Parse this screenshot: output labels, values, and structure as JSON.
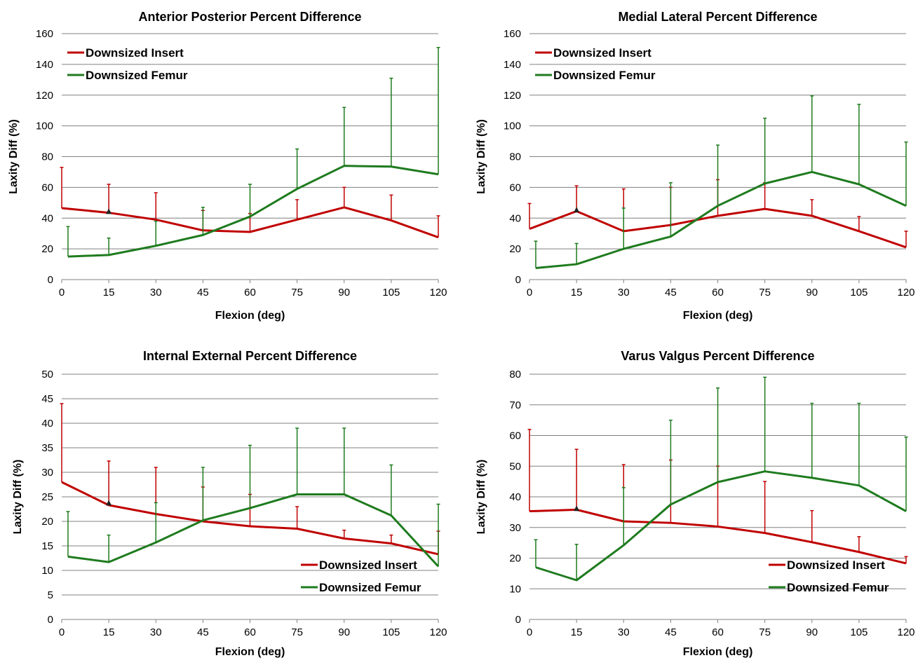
{
  "colors": {
    "insert": "#C00000",
    "femur": "#1E7B1E",
    "grid": "#808080",
    "marker": "#222222"
  },
  "chart_data": [
    {
      "type": "line",
      "title": "Anterior Posterior Percent Difference",
      "xlabel": "Flexion (deg)",
      "ylabel": "Laxity Diff (%)",
      "xlim": [
        0,
        120
      ],
      "ylim": [
        0,
        160
      ],
      "ystep": 20,
      "x_ticks": [
        "0",
        "15",
        "30",
        "45",
        "60",
        "75",
        "90",
        "105",
        "120"
      ],
      "y_ticks": [
        "0",
        "20",
        "40",
        "60",
        "80",
        "100",
        "120",
        "140",
        "160"
      ],
      "grid": true,
      "legend_position": "top-left",
      "series": [
        {
          "name": "Downsized Insert",
          "x": [
            0,
            15,
            30,
            45,
            60,
            75,
            90,
            105,
            120
          ],
          "values": [
            46.5,
            43.5,
            39,
            32,
            31,
            39,
            47,
            38.5,
            27.5
          ],
          "error_upper": [
            73,
            62,
            56.5,
            45,
            43,
            52,
            60,
            55,
            41.5
          ]
        },
        {
          "name": "Downsized Femur",
          "x": [
            2,
            15,
            30,
            45,
            60,
            75,
            90,
            105,
            120
          ],
          "values": [
            15,
            16,
            22,
            29,
            41,
            59,
            74,
            73.5,
            68.5
          ],
          "error_upper": [
            34.5,
            27,
            38,
            47,
            62,
            85,
            112,
            131,
            151
          ]
        }
      ],
      "markers": [
        {
          "x": 15,
          "y": 44.5,
          "symbol": "triangle"
        }
      ]
    },
    {
      "type": "line",
      "title": "Medial Lateral Percent Difference",
      "xlabel": "Flexion (deg)",
      "ylabel": "Laxity Diff (%)",
      "xlim": [
        0,
        120
      ],
      "ylim": [
        0,
        160
      ],
      "ystep": 20,
      "x_ticks": [
        "0",
        "15",
        "30",
        "45",
        "60",
        "75",
        "90",
        "105",
        "120"
      ],
      "y_ticks": [
        "0",
        "20",
        "40",
        "60",
        "80",
        "100",
        "120",
        "140",
        "160"
      ],
      "grid": true,
      "legend_position": "top-left",
      "series": [
        {
          "name": "Downsized Insert",
          "x": [
            0,
            15,
            30,
            45,
            60,
            75,
            90,
            105,
            120
          ],
          "values": [
            33,
            44.5,
            31.5,
            35.5,
            41.5,
            46,
            41.5,
            31.5,
            21
          ],
          "error_upper": [
            49.5,
            61,
            59,
            60,
            65,
            63,
            52,
            41,
            31.5
          ]
        },
        {
          "name": "Downsized Femur",
          "x": [
            2,
            15,
            30,
            45,
            60,
            75,
            90,
            105,
            120
          ],
          "values": [
            7.5,
            10,
            20,
            28,
            48,
            62.5,
            70,
            62,
            48
          ],
          "error_upper": [
            25,
            23.5,
            46.5,
            63,
            87.5,
            105,
            119.5,
            114,
            89.5
          ]
        }
      ],
      "markers": [
        {
          "x": 15,
          "y": 45.5,
          "symbol": "triangle"
        }
      ]
    },
    {
      "type": "line",
      "title": "Internal External Percent Difference",
      "xlabel": "Flexion (deg)",
      "ylabel": "Laxity Diff (%)",
      "xlim": [
        0,
        120
      ],
      "ylim": [
        0,
        50
      ],
      "ystep": 5,
      "x_ticks": [
        "0",
        "15",
        "30",
        "45",
        "60",
        "75",
        "90",
        "105",
        "120"
      ],
      "y_ticks": [
        "0",
        "5",
        "10",
        "15",
        "20",
        "25",
        "30",
        "35",
        "40",
        "45",
        "50"
      ],
      "grid": true,
      "legend_position": "bottom-right",
      "series": [
        {
          "name": "Downsized Insert",
          "x": [
            0,
            15,
            30,
            45,
            60,
            75,
            90,
            105,
            120
          ],
          "values": [
            28,
            23.3,
            21.5,
            20,
            19,
            18.5,
            16.5,
            15.5,
            13.3
          ],
          "error_upper": [
            44,
            32.3,
            31,
            27,
            25.5,
            23,
            18.2,
            17.2,
            18
          ]
        },
        {
          "name": "Downsized Femur",
          "x": [
            2,
            15,
            30,
            45,
            60,
            75,
            90,
            105,
            120
          ],
          "values": [
            12.8,
            11.7,
            15.7,
            20.2,
            22.7,
            25.5,
            25.5,
            21.2,
            10.8
          ],
          "error_upper": [
            22,
            17.2,
            23.8,
            31,
            35.5,
            39,
            39,
            31.5,
            23.5
          ]
        }
      ],
      "markers": [
        {
          "x": 15,
          "y": 23.8,
          "symbol": "triangle"
        }
      ]
    },
    {
      "type": "line",
      "title": "Varus Valgus Percent Difference",
      "xlabel": "Flexion (deg)",
      "ylabel": "Laxity Diff (%)",
      "xlim": [
        0,
        120
      ],
      "ylim": [
        0,
        80
      ],
      "ystep": 10,
      "x_ticks": [
        "0",
        "15",
        "30",
        "45",
        "60",
        "75",
        "90",
        "105",
        "120"
      ],
      "y_ticks": [
        "0",
        "10",
        "20",
        "30",
        "40",
        "50",
        "60",
        "70",
        "80"
      ],
      "grid": true,
      "legend_position": "bottom-right",
      "series": [
        {
          "name": "Downsized Insert",
          "x": [
            0,
            15,
            30,
            45,
            60,
            75,
            90,
            105,
            120
          ],
          "values": [
            35.3,
            35.8,
            32,
            31.5,
            30.3,
            28.2,
            25.2,
            22,
            18.3
          ],
          "error_upper": [
            62,
            55.5,
            50.5,
            52,
            50,
            45,
            35.5,
            27,
            20.5
          ]
        },
        {
          "name": "Downsized Femur",
          "x": [
            2,
            15,
            30,
            45,
            60,
            75,
            90,
            105,
            120
          ],
          "values": [
            17,
            12.8,
            24.2,
            37.5,
            44.8,
            48.3,
            46.2,
            43.7,
            35.3
          ],
          "error_upper": [
            26,
            24.5,
            43,
            65,
            75.5,
            79,
            70.5,
            70.5,
            59.5
          ]
        }
      ],
      "markers": [
        {
          "x": 15,
          "y": 36.3,
          "symbol": "triangle"
        }
      ]
    }
  ]
}
